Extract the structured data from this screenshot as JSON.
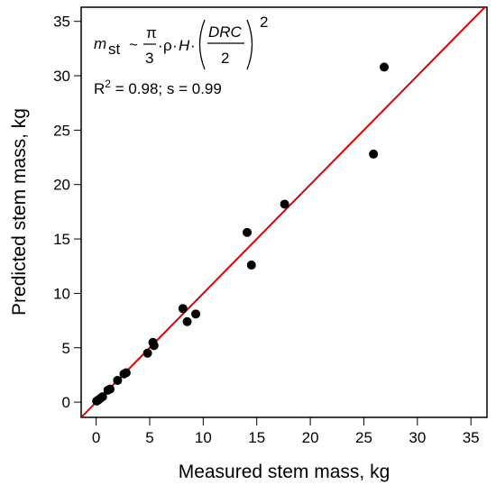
{
  "chart_data": {
    "type": "scatter",
    "xlabel": "Measured stem mass, kg",
    "ylabel": "Predicted stem mass, kg",
    "xlim": [
      -1.4,
      36.5
    ],
    "ylim": [
      -1.4,
      36.3
    ],
    "x_ticks": [
      0,
      5,
      10,
      15,
      20,
      25,
      30,
      35
    ],
    "y_ticks": [
      0,
      5,
      10,
      15,
      20,
      25,
      30,
      35
    ],
    "x_tick_labels": [
      "0",
      "5",
      "10",
      "15",
      "20",
      "25",
      "30",
      "35"
    ],
    "y_tick_labels": [
      "0",
      "5",
      "10",
      "15",
      "20",
      "25",
      "30",
      "35"
    ],
    "grid": false,
    "series": [
      {
        "marker": "filled-circle",
        "color": "#000000",
        "points": [
          {
            "x": 0.05,
            "y": 0.1
          },
          {
            "x": 0.2,
            "y": 0.2
          },
          {
            "x": 0.4,
            "y": 0.35
          },
          {
            "x": 0.6,
            "y": 0.5
          },
          {
            "x": 1.1,
            "y": 1.1
          },
          {
            "x": 1.3,
            "y": 1.2
          },
          {
            "x": 2.0,
            "y": 2.0
          },
          {
            "x": 2.6,
            "y": 2.6
          },
          {
            "x": 2.8,
            "y": 2.7
          },
          {
            "x": 4.8,
            "y": 4.5
          },
          {
            "x": 5.3,
            "y": 5.5
          },
          {
            "x": 5.4,
            "y": 5.2
          },
          {
            "x": 8.1,
            "y": 8.6
          },
          {
            "x": 8.5,
            "y": 7.4
          },
          {
            "x": 9.3,
            "y": 8.1
          },
          {
            "x": 14.1,
            "y": 15.6
          },
          {
            "x": 14.5,
            "y": 12.6
          },
          {
            "x": 17.6,
            "y": 18.2
          },
          {
            "x": 25.9,
            "y": 22.8
          },
          {
            "x": 26.9,
            "y": 30.8
          }
        ]
      }
    ],
    "reference_line": {
      "type": "1:1",
      "color": "#e00000"
    },
    "annotation": {
      "formula": {
        "lhs_var": "m",
        "lhs_sub": "st",
        "tilde": "~",
        "pi": "π",
        "three": "3",
        "dot": "·",
        "rho": "ρ",
        "H": "H",
        "drc": "DRC",
        "two": "2",
        "exponent": "2"
      },
      "r2_line": {
        "prefix": "R",
        "sup": "2",
        "rest": " = 0.98; s = 0.99"
      }
    }
  }
}
